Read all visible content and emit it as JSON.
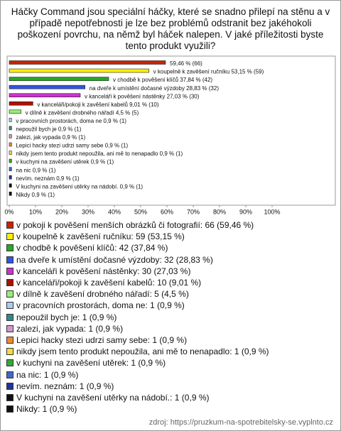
{
  "chart_data": {
    "type": "bar",
    "orientation": "horizontal",
    "title": "Háčky Command jsou speciální háčky, které se snadno přilepí na stěnu a v případě nepotřebnosti je lze bez problémů odstranit bez jakéhokoli poškození povrchu, na němž byl háček nalepen. V jaké příležitosti byste tento produkt využili?",
    "categories": [
      "v pokoji k pověšení menších obrázků či fotografií",
      "v koupelně k zavěšení ručníku",
      "v chodbě k pověšení klíčů",
      "na dveře k umístění dočasné výzdoby",
      "v kanceláři k pověšení nástěnky",
      "v kanceláři/pokoji k zavěšení kabelů",
      "v dílně k zavěšení drobného nářadí",
      "v pracovních prostorách, doma ne",
      "nepoužil bych je",
      "zalezi, jak vypada",
      "Lepici hacky stezi udrzi samy sebe",
      "nikdy jsem tento produkt nepoužila, ani mě to nenapadlo",
      "v kuchyni na zavěšení utěrek",
      "na nic",
      "nevím. neznám",
      "V kuchyni na zavěšení utěrky na nádobí.",
      "Nikdy"
    ],
    "values": [
      59.46,
      53.15,
      37.84,
      28.83,
      27.03,
      9.01,
      4.5,
      0.9,
      0.9,
      0.9,
      0.9,
      0.9,
      0.9,
      0.9,
      0.9,
      0.9,
      0.9
    ],
    "value_labels": [
      "59,46 % (66)",
      "v koupelně k zavěšení ručníku 53,15 % (59)",
      "v chodbě k pověšení klíčů 37,84 % (42)",
      "na dveře k umístění dočasné výzdoby 28,83 % (32)",
      "v kanceláři k pověšení nástěnky 27,03 % (30)",
      "v kanceláři/pokoji k zavěšení kabelů 9,01 % (10)",
      "v dílně k zavěšení drobného nářadí 4,5 % (5)",
      "v pracovních prostorách, doma ne 0,9 % (1)",
      "nepoužil bych je 0,9 % (1)",
      "zalezi, jak vypada 0,9 % (1)",
      "Lepici hacky stezi udrzi samy sebe 0,9 % (1)",
      "nikdy jsem tento produkt nepoužila, ani mě to nenapadlo 0,9 % (1)",
      "v kuchyni na zavěšení utěrek 0,9 % (1)",
      "na nic 0,9 % (1)",
      "nevím. neznám 0,9 % (1)",
      "V kuchyni na zavěšení utěrky na nádobí. 0,9 % (1)",
      "Nikdy 0,9 % (1)"
    ],
    "legend_labels": [
      "v pokoji k pověšení menších obrázků či fotografií: 66 (59,46 %)",
      "v koupelně k zavěšení ručníku: 59 (53,15 %)",
      "v chodbě k pověšení klíčů: 42 (37,84 %)",
      "na dveře k umístění dočasné výzdoby: 32 (28,83 %)",
      "v kanceláři k pověšení nástěnky: 30 (27,03 %)",
      "v kanceláři/pokoji k zavěšení kabelů: 10 (9,01 %)",
      "v dílně k zavěšení drobného nářadí: 5 (4,5 %)",
      "v pracovních prostorách, doma ne: 1 (0,9 %)",
      "nepoužil bych je: 1 (0,9 %)",
      "zalezi, jak vypada: 1 (0,9 %)",
      "Lepici hacky stezi udrzi samy sebe: 1 (0,9 %)",
      "nikdy jsem tento produkt nepoužila, ani mě to nenapadlo: 1 (0,9 %)",
      "v kuchyni na zavěšení utěrek: 1 (0,9 %)",
      "na nic: 1 (0,9 %)",
      "nevím. neznám: 1 (0,9 %)",
      "V kuchyni na zavěšení utěrky na nádobí.: 1 (0,9 %)",
      "Nikdy: 1 (0,9 %)"
    ],
    "colors": [
      "#cc2200",
      "#ffee00",
      "#22aa22",
      "#3355dd",
      "#cc33cc",
      "#aa1100",
      "#99ee77",
      "#aaccee",
      "#338888",
      "#cc99cc",
      "#ee8833",
      "#eedd44",
      "#33aa33",
      "#4466cc",
      "#223399",
      "#111111",
      "#111111"
    ],
    "xlim": [
      0,
      100
    ],
    "xticks": [
      {
        "value": 0,
        "label": "0%"
      },
      {
        "value": 10,
        "label": "10%"
      },
      {
        "value": 20,
        "label": "20%"
      },
      {
        "value": 30,
        "label": "30%"
      },
      {
        "value": 40,
        "label": "40%"
      },
      {
        "value": 50,
        "label": "50%"
      },
      {
        "value": 60,
        "label": "60%"
      },
      {
        "value": 70,
        "label": "70%"
      },
      {
        "value": 80,
        "label": "80%"
      },
      {
        "value": 90,
        "label": "90%"
      },
      {
        "value": 100,
        "label": "100%"
      }
    ],
    "source": "zdroj: https://pruzkum-na-spotrebitelsky-se.vyplnto.cz"
  }
}
